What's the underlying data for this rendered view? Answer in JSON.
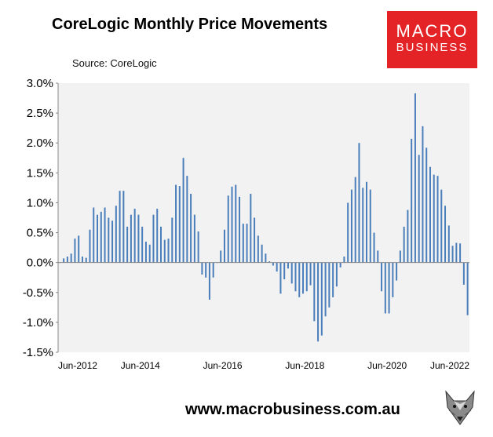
{
  "chart_data": {
    "type": "bar",
    "title": "CoreLogic Monthly Price Movements",
    "source": "Source: CoreLogic",
    "ylim": [
      -1.5,
      3.0
    ],
    "yticks": [
      "3.0%",
      "2.5%",
      "2.0%",
      "1.5%",
      "1.0%",
      "0.5%",
      "0.0%",
      "-0.5%",
      "-1.0%",
      "-1.5%"
    ],
    "xticks": [
      "Jun-2012",
      "Jun-2014",
      "Jun-2016",
      "Jun-2018",
      "Jun-2020",
      "Jun-2022"
    ],
    "grid": false,
    "series_color": "#4a7ebb",
    "plot_background": "#f2f2f2",
    "start": "Jun-2012",
    "end": "Jun-2022",
    "values": [
      0.0,
      0.07,
      0.1,
      0.15,
      0.4,
      0.45,
      0.1,
      0.08,
      0.55,
      0.92,
      0.8,
      0.85,
      0.92,
      0.75,
      0.7,
      0.95,
      1.2,
      1.2,
      0.6,
      0.8,
      0.9,
      0.8,
      0.6,
      0.35,
      0.3,
      0.8,
      0.9,
      0.6,
      0.38,
      0.4,
      0.75,
      1.3,
      1.28,
      1.75,
      1.45,
      1.15,
      0.8,
      0.52,
      -0.2,
      -0.25,
      -0.62,
      -0.25,
      0.0,
      0.2,
      0.55,
      1.12,
      1.27,
      1.3,
      1.1,
      0.65,
      0.65,
      1.15,
      0.75,
      0.45,
      0.3,
      0.15,
      0.02,
      -0.05,
      -0.15,
      -0.52,
      -0.28,
      -0.1,
      -0.35,
      -0.48,
      -0.58,
      -0.52,
      -0.48,
      -0.38,
      -0.98,
      -1.32,
      -1.22,
      -0.9,
      -0.75,
      -0.58,
      -0.4,
      -0.08,
      0.1,
      1.0,
      1.22,
      1.43,
      2.0,
      1.25,
      1.35,
      1.22,
      0.5,
      0.2,
      -0.48,
      -0.85,
      -0.85,
      -0.58,
      -0.3,
      0.2,
      0.6,
      0.88,
      2.07,
      2.83,
      1.8,
      2.28,
      1.92,
      1.6,
      1.47,
      1.45,
      1.22,
      0.95,
      0.62,
      0.28,
      0.33,
      0.32,
      -0.37,
      -0.88
    ]
  },
  "footer": {
    "url": "www.macrobusiness.com.au"
  },
  "logo": {
    "line1": "MACRO",
    "line2": "BUSINESS",
    "color": "#e32326"
  },
  "fox_icon": "fox-head-icon"
}
